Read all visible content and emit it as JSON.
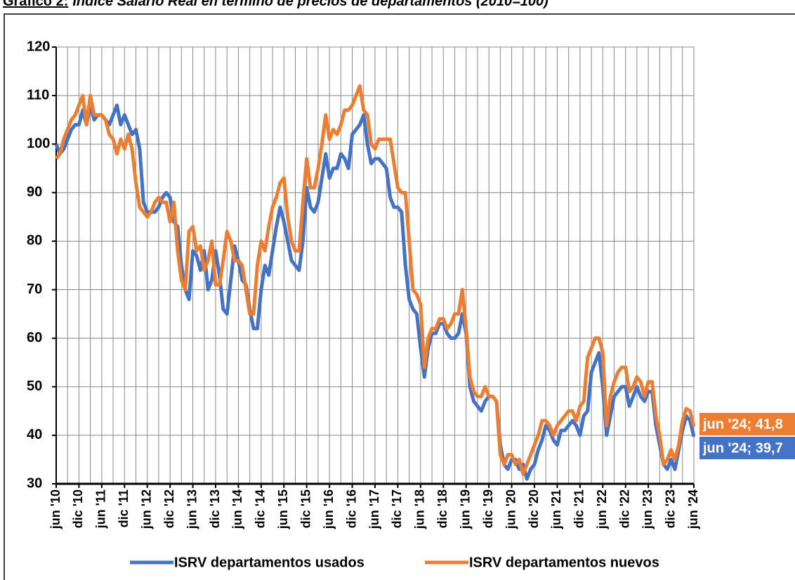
{
  "chart_data": {
    "type": "line",
    "label": "Gráfico 2:",
    "title": "Índice Salario Real en término de precios de departamentos (2010=100)",
    "categories": [
      "jun '10",
      null,
      null,
      null,
      null,
      null,
      "dic '10",
      null,
      null,
      null,
      null,
      null,
      "jun '11",
      null,
      null,
      null,
      null,
      null,
      "dic '11",
      null,
      null,
      null,
      null,
      null,
      "jun '12",
      null,
      null,
      null,
      null,
      null,
      "dic '12",
      null,
      null,
      null,
      null,
      null,
      "jun '13",
      null,
      null,
      null,
      null,
      null,
      "dic '13",
      null,
      null,
      null,
      null,
      null,
      "jun '14",
      null,
      null,
      null,
      null,
      null,
      "dic '14",
      null,
      null,
      null,
      null,
      null,
      "jun '15",
      null,
      null,
      null,
      null,
      null,
      "dic '15",
      null,
      null,
      null,
      null,
      null,
      "jun '16",
      null,
      null,
      null,
      null,
      null,
      "dic '16",
      null,
      null,
      null,
      null,
      null,
      "jun '17",
      null,
      null,
      null,
      null,
      null,
      "dic '17",
      null,
      null,
      null,
      null,
      null,
      "jun '18",
      null,
      null,
      null,
      null,
      null,
      "dic '18",
      null,
      null,
      null,
      null,
      null,
      "jun '19",
      null,
      null,
      null,
      null,
      null,
      "dic '19",
      null,
      null,
      null,
      null,
      null,
      "jun '20",
      null,
      null,
      null,
      null,
      null,
      "dic '20",
      null,
      null,
      null,
      null,
      null,
      "jun '21",
      null,
      null,
      null,
      null,
      null,
      "dic '21",
      null,
      null,
      null,
      null,
      null,
      "jun '22",
      null,
      null,
      null,
      null,
      null,
      "dic '22",
      null,
      null,
      null,
      null,
      null,
      "jun '23",
      null,
      null,
      null,
      null,
      null,
      "dic '23",
      null,
      null,
      null,
      null,
      null,
      "jun '24"
    ],
    "series": [
      {
        "name": "ISRV departamentos usados",
        "color": "#4472c4",
        "end_label": "jun '24; 39,7",
        "values": [
          100,
          98,
          99,
          101,
          103,
          104,
          104,
          107,
          104,
          108,
          105,
          106,
          106,
          105,
          104,
          106,
          108,
          104,
          106,
          104,
          102,
          103,
          99,
          88,
          86,
          86,
          86,
          87,
          89,
          90,
          89,
          84,
          83,
          75,
          70,
          68,
          78,
          77,
          74,
          78,
          70,
          72,
          78,
          73,
          66,
          65,
          72,
          79,
          76,
          72,
          71,
          66,
          62,
          62,
          70,
          75,
          73,
          78,
          83,
          87,
          84,
          80,
          76,
          75,
          74,
          80,
          91,
          87,
          86,
          88,
          93,
          98,
          93,
          95,
          95,
          98,
          97,
          95,
          102,
          103,
          104,
          106,
          100,
          96,
          97,
          97,
          96,
          95,
          89,
          87,
          87,
          86,
          75,
          68,
          66,
          65,
          58,
          52,
          58,
          61,
          61,
          63,
          63,
          61,
          60,
          60,
          61,
          65,
          61,
          50,
          47,
          46,
          45,
          47,
          48,
          48,
          47,
          38,
          34,
          33,
          35,
          35,
          33,
          34,
          31,
          33,
          34,
          37,
          39,
          42,
          41,
          39,
          38,
          41,
          41,
          42,
          43,
          42,
          40,
          44,
          45,
          53,
          55,
          57,
          50,
          40,
          44,
          48,
          49,
          50,
          50,
          46,
          48,
          50,
          48,
          47,
          49,
          49,
          42,
          38,
          34,
          33,
          35,
          33,
          37,
          41,
          44,
          43,
          39.7
        ]
      },
      {
        "name": "ISRV departamentos nuevos",
        "color": "#ed7d31",
        "end_label": "jun '24; 41,8",
        "values": [
          97,
          98,
          101,
          103,
          105,
          106,
          108,
          110,
          104,
          110,
          106,
          106,
          106,
          105,
          102,
          101,
          98,
          101,
          99,
          102,
          99,
          92,
          87,
          86,
          85,
          86,
          88,
          89,
          88,
          88,
          84,
          88,
          78,
          72,
          70,
          82,
          83,
          78,
          79,
          74,
          76,
          80,
          71,
          71,
          76,
          82,
          80,
          76,
          76,
          75,
          70,
          65,
          65,
          75,
          80,
          78,
          83,
          87,
          89,
          92,
          93,
          85,
          80,
          78,
          78,
          88,
          97,
          91,
          91,
          95,
          100,
          106,
          101,
          103,
          102,
          104,
          107,
          107,
          108,
          110,
          112,
          107,
          106,
          100,
          99,
          101,
          101,
          101,
          101,
          96,
          91,
          90,
          90,
          80,
          70,
          69,
          67,
          54,
          60,
          62,
          62,
          64,
          64,
          62,
          63,
          65,
          65,
          70,
          62,
          52,
          49,
          48,
          48,
          50,
          48,
          48,
          47,
          36,
          34,
          36,
          36,
          34,
          35,
          32,
          34,
          36,
          38,
          40,
          43,
          43,
          42,
          40,
          42,
          43,
          44,
          45,
          45,
          43,
          46,
          47,
          56,
          58,
          60,
          60,
          57,
          42,
          48,
          51,
          53,
          54,
          54,
          49,
          50,
          52,
          51,
          48,
          51,
          51,
          44,
          40,
          34,
          35,
          37,
          35,
          38,
          43,
          45.5,
          45,
          41.8
        ]
      }
    ],
    "ylim": [
      30,
      120
    ],
    "yticks": [
      30,
      40,
      50,
      60,
      70,
      80,
      90,
      100,
      110,
      120
    ],
    "grid": true
  }
}
